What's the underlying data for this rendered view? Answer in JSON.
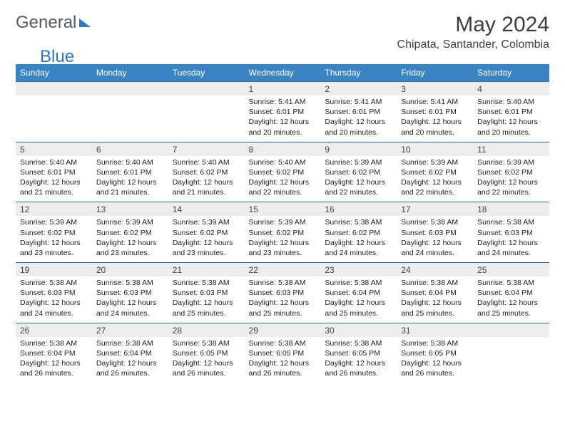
{
  "logo": {
    "part1": "General",
    "part2": "Blue"
  },
  "header": {
    "title": "May 2024",
    "location": "Chipata, Santander, Colombia"
  },
  "colors": {
    "header_bg": "#3b84c4",
    "header_text": "#ffffff",
    "day_row_bg": "#eceeee",
    "day_border": "#2f6ea8",
    "body_text": "#222222",
    "title_text": "#3a3f44",
    "logo_gray": "#555b60",
    "logo_blue": "#2f78c2"
  },
  "columns": [
    "Sunday",
    "Monday",
    "Tuesday",
    "Wednesday",
    "Thursday",
    "Friday",
    "Saturday"
  ],
  "weeks": [
    [
      null,
      null,
      null,
      {
        "n": "1",
        "sunrise": "5:41 AM",
        "sunset": "6:01 PM",
        "daylight": "12 hours and 20 minutes."
      },
      {
        "n": "2",
        "sunrise": "5:41 AM",
        "sunset": "6:01 PM",
        "daylight": "12 hours and 20 minutes."
      },
      {
        "n": "3",
        "sunrise": "5:41 AM",
        "sunset": "6:01 PM",
        "daylight": "12 hours and 20 minutes."
      },
      {
        "n": "4",
        "sunrise": "5:40 AM",
        "sunset": "6:01 PM",
        "daylight": "12 hours and 20 minutes."
      }
    ],
    [
      {
        "n": "5",
        "sunrise": "5:40 AM",
        "sunset": "6:01 PM",
        "daylight": "12 hours and 21 minutes."
      },
      {
        "n": "6",
        "sunrise": "5:40 AM",
        "sunset": "6:01 PM",
        "daylight": "12 hours and 21 minutes."
      },
      {
        "n": "7",
        "sunrise": "5:40 AM",
        "sunset": "6:02 PM",
        "daylight": "12 hours and 21 minutes."
      },
      {
        "n": "8",
        "sunrise": "5:40 AM",
        "sunset": "6:02 PM",
        "daylight": "12 hours and 22 minutes."
      },
      {
        "n": "9",
        "sunrise": "5:39 AM",
        "sunset": "6:02 PM",
        "daylight": "12 hours and 22 minutes."
      },
      {
        "n": "10",
        "sunrise": "5:39 AM",
        "sunset": "6:02 PM",
        "daylight": "12 hours and 22 minutes."
      },
      {
        "n": "11",
        "sunrise": "5:39 AM",
        "sunset": "6:02 PM",
        "daylight": "12 hours and 22 minutes."
      }
    ],
    [
      {
        "n": "12",
        "sunrise": "5:39 AM",
        "sunset": "6:02 PM",
        "daylight": "12 hours and 23 minutes."
      },
      {
        "n": "13",
        "sunrise": "5:39 AM",
        "sunset": "6:02 PM",
        "daylight": "12 hours and 23 minutes."
      },
      {
        "n": "14",
        "sunrise": "5:39 AM",
        "sunset": "6:02 PM",
        "daylight": "12 hours and 23 minutes."
      },
      {
        "n": "15",
        "sunrise": "5:39 AM",
        "sunset": "6:02 PM",
        "daylight": "12 hours and 23 minutes."
      },
      {
        "n": "16",
        "sunrise": "5:38 AM",
        "sunset": "6:02 PM",
        "daylight": "12 hours and 24 minutes."
      },
      {
        "n": "17",
        "sunrise": "5:38 AM",
        "sunset": "6:03 PM",
        "daylight": "12 hours and 24 minutes."
      },
      {
        "n": "18",
        "sunrise": "5:38 AM",
        "sunset": "6:03 PM",
        "daylight": "12 hours and 24 minutes."
      }
    ],
    [
      {
        "n": "19",
        "sunrise": "5:38 AM",
        "sunset": "6:03 PM",
        "daylight": "12 hours and 24 minutes."
      },
      {
        "n": "20",
        "sunrise": "5:38 AM",
        "sunset": "6:03 PM",
        "daylight": "12 hours and 24 minutes."
      },
      {
        "n": "21",
        "sunrise": "5:38 AM",
        "sunset": "6:03 PM",
        "daylight": "12 hours and 25 minutes."
      },
      {
        "n": "22",
        "sunrise": "5:38 AM",
        "sunset": "6:03 PM",
        "daylight": "12 hours and 25 minutes."
      },
      {
        "n": "23",
        "sunrise": "5:38 AM",
        "sunset": "6:04 PM",
        "daylight": "12 hours and 25 minutes."
      },
      {
        "n": "24",
        "sunrise": "5:38 AM",
        "sunset": "6:04 PM",
        "daylight": "12 hours and 25 minutes."
      },
      {
        "n": "25",
        "sunrise": "5:38 AM",
        "sunset": "6:04 PM",
        "daylight": "12 hours and 25 minutes."
      }
    ],
    [
      {
        "n": "26",
        "sunrise": "5:38 AM",
        "sunset": "6:04 PM",
        "daylight": "12 hours and 26 minutes."
      },
      {
        "n": "27",
        "sunrise": "5:38 AM",
        "sunset": "6:04 PM",
        "daylight": "12 hours and 26 minutes."
      },
      {
        "n": "28",
        "sunrise": "5:38 AM",
        "sunset": "6:05 PM",
        "daylight": "12 hours and 26 minutes."
      },
      {
        "n": "29",
        "sunrise": "5:38 AM",
        "sunset": "6:05 PM",
        "daylight": "12 hours and 26 minutes."
      },
      {
        "n": "30",
        "sunrise": "5:38 AM",
        "sunset": "6:05 PM",
        "daylight": "12 hours and 26 minutes."
      },
      {
        "n": "31",
        "sunrise": "5:38 AM",
        "sunset": "6:05 PM",
        "daylight": "12 hours and 26 minutes."
      },
      null
    ]
  ],
  "labels": {
    "sunrise": "Sunrise:",
    "sunset": "Sunset:",
    "daylight": "Daylight:"
  }
}
